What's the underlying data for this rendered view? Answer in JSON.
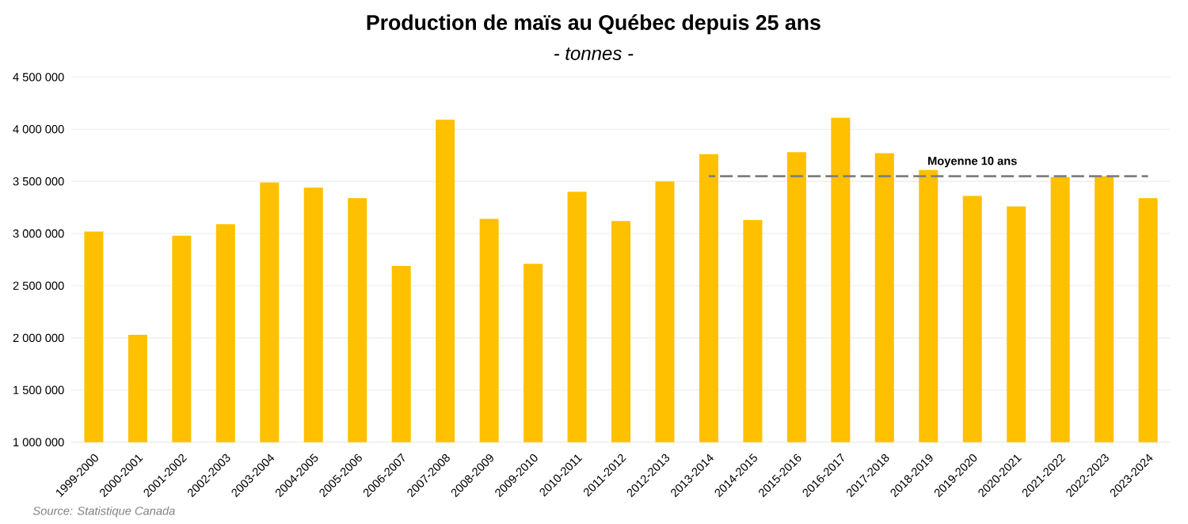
{
  "chart_data": {
    "type": "bar",
    "title": "Production de maïs au Québec depuis 25 ans",
    "subtitle": "- tonnes -",
    "categories": [
      "1999-2000",
      "2000-2001",
      "2001-2002",
      "2002-2003",
      "2003-2004",
      "2004-2005",
      "2005-2006",
      "2006-2007",
      "2007-2008",
      "2008-2009",
      "2009-2010",
      "2010-2011",
      "2011-2012",
      "2012-2013",
      "2013-2014",
      "2014-2015",
      "2015-2016",
      "2016-2017",
      "2017-2018",
      "2018-2019",
      "2019-2020",
      "2020-2021",
      "2021-2022",
      "2022-2023",
      "2023-2024"
    ],
    "series": [
      {
        "color": "#ffc000",
        "values": [
          3020000,
          2030000,
          2980000,
          3090000,
          3490000,
          3440000,
          3340000,
          2690000,
          4090000,
          3140000,
          2710000,
          3400000,
          3120000,
          3500000,
          3760000,
          3130000,
          3780000,
          4110000,
          3770000,
          3610000,
          3360000,
          3260000,
          3540000,
          3550000,
          3340000
        ]
      },
      {
        "type": "line",
        "name": "Moyenne 10 ans",
        "color": "#7f7f7f",
        "line_style": "dashed",
        "values": [
          null,
          null,
          null,
          null,
          null,
          null,
          null,
          null,
          null,
          null,
          null,
          null,
          null,
          null,
          3550000,
          3550000,
          3550000,
          3550000,
          3550000,
          3550000,
          3550000,
          3550000,
          3550000,
          3550000,
          3550000
        ]
      }
    ],
    "ylim": [
      1000000,
      4500000
    ],
    "yticks": [
      {
        "value": 1000000,
        "label": "1 000 000"
      },
      {
        "value": 1500000,
        "label": "1 500 000"
      },
      {
        "value": 2000000,
        "label": "2 000 000"
      },
      {
        "value": 2500000,
        "label": "2 500 000"
      },
      {
        "value": 3000000,
        "label": "3 000 000"
      },
      {
        "value": 3500000,
        "label": "3 500 000"
      },
      {
        "value": 4000000,
        "label": "4 000 000"
      },
      {
        "value": 4500000,
        "label": "4 500 000"
      }
    ],
    "grid": "y",
    "annotations": [
      "Source: Statistique Canada"
    ]
  }
}
